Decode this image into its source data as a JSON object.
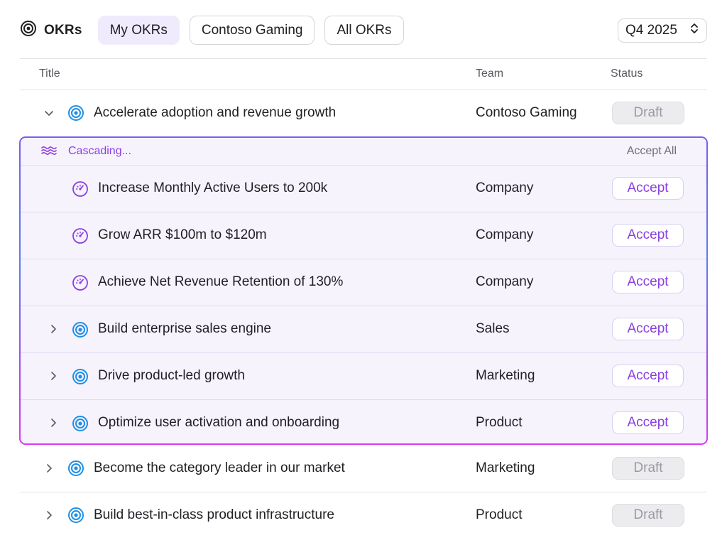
{
  "header": {
    "brand": "OKRs",
    "tabs": [
      "My OKRs",
      "Contoso Gaming",
      "All OKRs"
    ],
    "active_tab": "My OKRs",
    "quarter": "Q4 2025"
  },
  "columns": {
    "title": "Title",
    "team": "Team",
    "status": "Status"
  },
  "parent": {
    "title": "Accelerate adoption and revenue growth",
    "team": "Contoso Gaming",
    "status": "Draft"
  },
  "cascade": {
    "label": "Cascading...",
    "accept_all": "Accept All",
    "rows": [
      {
        "title": "Increase Monthly Active Users to 200k",
        "team": "Company",
        "action": "Accept",
        "icon": "gauge-icon"
      },
      {
        "title": "Grow ARR $100m to $120m",
        "team": "Company",
        "action": "Accept",
        "icon": "gauge-icon"
      },
      {
        "title": "Achieve Net Revenue Retention of 130%",
        "team": "Company",
        "action": "Accept",
        "icon": "gauge-icon"
      },
      {
        "title": "Build enterprise sales engine",
        "team": "Sales",
        "action": "Accept",
        "icon": "target-icon"
      },
      {
        "title": "Drive product-led growth",
        "team": "Marketing",
        "action": "Accept",
        "icon": "target-icon"
      },
      {
        "title": "Optimize user activation and onboarding",
        "team": "Product",
        "action": "Accept",
        "icon": "target-icon"
      }
    ]
  },
  "rows_after": [
    {
      "title": "Become the category leader in our market",
      "team": "Marketing",
      "status": "Draft"
    },
    {
      "title": "Build best-in-class product infrastructure",
      "team": "Product",
      "status": "Draft"
    }
  ],
  "colors": {
    "accent": "#8a3fe0",
    "target_blue": "#1e8fe6",
    "active_tab_bg": "#efebfd"
  }
}
